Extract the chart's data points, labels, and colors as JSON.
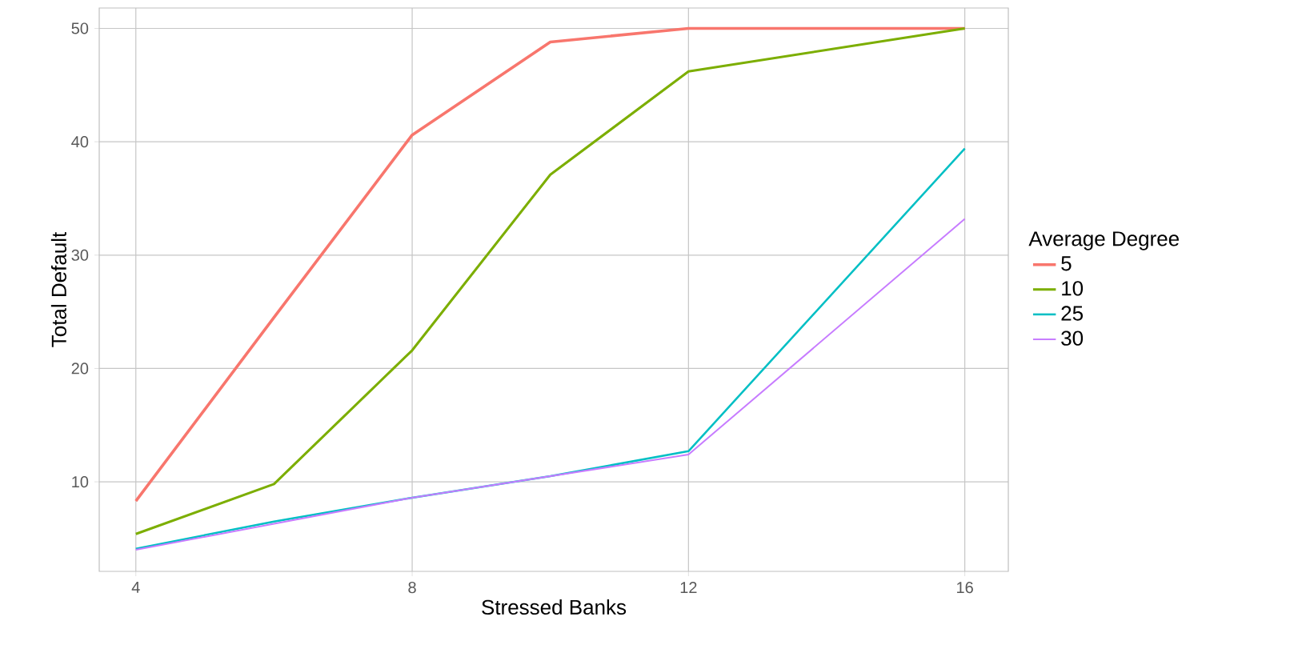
{
  "chart_data": {
    "type": "line",
    "xlabel": "Stressed Banks",
    "ylabel": "Total Default",
    "legend_title": "Average Degree",
    "legend": "right",
    "grid": true,
    "x": [
      4,
      6,
      8,
      10,
      12,
      16
    ],
    "series": [
      {
        "name": "5",
        "color": "#f8766d",
        "values": [
          8.3,
          24.5,
          40.6,
          48.8,
          50,
          50
        ]
      },
      {
        "name": "10",
        "color": "#7cae00",
        "values": [
          5.4,
          9.8,
          21.6,
          37.1,
          46.2,
          50
        ]
      },
      {
        "name": "25",
        "color": "#00bfc4",
        "values": [
          4.1,
          6.5,
          8.6,
          10.5,
          12.7,
          39.4
        ]
      },
      {
        "name": "30",
        "color": "#c77cff",
        "values": [
          4.0,
          6.3,
          8.6,
          10.5,
          12.4,
          33.2
        ]
      }
    ],
    "xlim": [
      3.47,
      16.63
    ],
    "ylim": [
      2.1,
      51.8
    ],
    "xticks": [
      4,
      8,
      12,
      16
    ],
    "yticks": [
      10,
      20,
      30,
      40,
      50
    ]
  }
}
